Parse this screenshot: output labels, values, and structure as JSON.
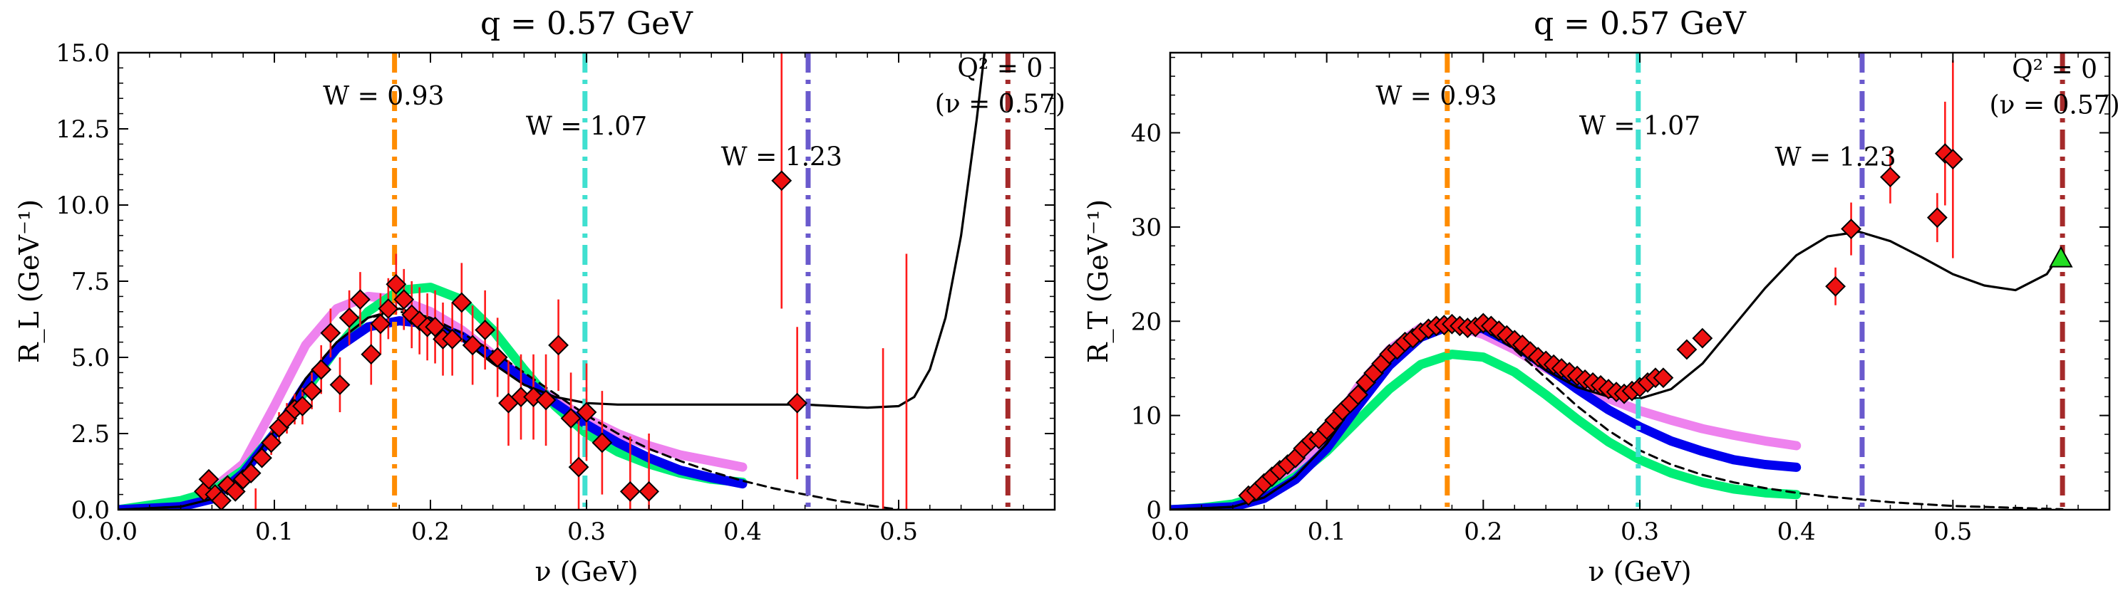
{
  "chart_data": [
    {
      "type": "line",
      "title": "q = 0.57 GeV",
      "xlabel": "ν (GeV)",
      "ylabel": "R_L (GeV⁻¹)",
      "xlim": [
        0.0,
        0.6
      ],
      "ylim": [
        0.0,
        15.0
      ],
      "x_ticks": [
        "0.0",
        "0.1",
        "0.2",
        "0.3",
        "0.4",
        "0.5"
      ],
      "y_ticks": [
        "0.0",
        "2.5",
        "5.0",
        "7.5",
        "10.0",
        "12.5",
        "15.0"
      ],
      "vlines": [
        {
          "x": 0.177,
          "color": "#ff8c00",
          "label": "W = 0.93",
          "label_x": 0.17,
          "label_y": 13.3
        },
        {
          "x": 0.299,
          "color": "#40e0d0",
          "label": "W = 1.07",
          "label_x": 0.3,
          "label_y": 12.3
        },
        {
          "x": 0.442,
          "color": "#6a5acd",
          "label": "W = 1.23",
          "label_x": 0.425,
          "label_y": 11.3
        },
        {
          "x": 0.57,
          "color": "#a52a2a",
          "label": "Q² = 0",
          "label2": "(ν = 0.57)",
          "label_x": 0.565,
          "label_y": 14.2
        }
      ],
      "series": [
        {
          "style": "thick",
          "color": "#ee82ee",
          "x": [
            0.0,
            0.05,
            0.08,
            0.1,
            0.12,
            0.14,
            0.16,
            0.18,
            0.2,
            0.22,
            0.24,
            0.26,
            0.28,
            0.3,
            0.32,
            0.34,
            0.36,
            0.38,
            0.4
          ],
          "y": [
            0.0,
            0.25,
            1.5,
            3.4,
            5.4,
            6.6,
            7.0,
            6.9,
            6.5,
            5.9,
            5.1,
            4.3,
            3.6,
            3.0,
            2.5,
            2.1,
            1.8,
            1.6,
            1.4
          ]
        },
        {
          "style": "thick",
          "color": "#00ee76",
          "x": [
            0.0,
            0.02,
            0.04,
            0.06,
            0.08,
            0.1,
            0.12,
            0.14,
            0.16,
            0.18,
            0.2,
            0.22,
            0.24,
            0.26,
            0.28,
            0.3,
            0.32,
            0.34,
            0.36,
            0.38,
            0.4
          ],
          "y": [
            0.0,
            0.15,
            0.3,
            0.6,
            1.3,
            2.5,
            3.9,
            5.3,
            6.5,
            7.2,
            7.3,
            6.9,
            5.9,
            4.6,
            3.4,
            2.5,
            1.9,
            1.5,
            1.2,
            1.0,
            0.9
          ]
        },
        {
          "style": "thick",
          "color": "#0000ee",
          "x": [
            0.0,
            0.04,
            0.06,
            0.08,
            0.1,
            0.12,
            0.14,
            0.16,
            0.18,
            0.2,
            0.22,
            0.24,
            0.26,
            0.28,
            0.3,
            0.32,
            0.34,
            0.36,
            0.38,
            0.4
          ],
          "y": [
            0.0,
            0.1,
            0.35,
            1.2,
            2.5,
            4.1,
            5.3,
            6.0,
            6.2,
            6.1,
            5.7,
            5.0,
            4.3,
            3.5,
            2.8,
            2.2,
            1.7,
            1.3,
            1.05,
            0.85
          ]
        },
        {
          "style": "dashed",
          "color": "#000000",
          "x": [
            0.0,
            0.04,
            0.06,
            0.08,
            0.1,
            0.12,
            0.14,
            0.16,
            0.18,
            0.2,
            0.22,
            0.24,
            0.26,
            0.28,
            0.3,
            0.32,
            0.34,
            0.36,
            0.38,
            0.4,
            0.42,
            0.44,
            0.46,
            0.48,
            0.5
          ],
          "y": [
            0.0,
            0.1,
            0.35,
            1.2,
            2.6,
            4.3,
            5.5,
            6.3,
            6.5,
            6.3,
            5.8,
            5.2,
            4.5,
            3.8,
            3.1,
            2.5,
            2.0,
            1.6,
            1.25,
            0.95,
            0.7,
            0.5,
            0.3,
            0.15,
            0.0
          ]
        },
        {
          "style": "solid",
          "color": "#000000",
          "x": [
            0.0,
            0.04,
            0.06,
            0.08,
            0.1,
            0.12,
            0.14,
            0.16,
            0.18,
            0.2,
            0.22,
            0.24,
            0.26,
            0.28,
            0.3,
            0.32,
            0.34,
            0.36,
            0.38,
            0.4,
            0.42,
            0.44,
            0.46,
            0.48,
            0.5,
            0.51,
            0.52,
            0.53,
            0.54,
            0.55,
            0.555
          ],
          "y": [
            0.0,
            0.1,
            0.35,
            1.2,
            2.6,
            4.3,
            5.5,
            6.3,
            6.6,
            6.3,
            5.6,
            4.8,
            4.1,
            3.7,
            3.5,
            3.45,
            3.45,
            3.45,
            3.45,
            3.45,
            3.45,
            3.45,
            3.4,
            3.35,
            3.4,
            3.7,
            4.6,
            6.3,
            9.0,
            12.8,
            15.0
          ]
        }
      ],
      "points": {
        "marker": "diamond",
        "color": "#ee1111",
        "x": [
          0.055,
          0.058,
          0.062,
          0.066,
          0.07,
          0.075,
          0.08,
          0.085,
          0.092,
          0.098,
          0.103,
          0.108,
          0.113,
          0.118,
          0.124,
          0.13,
          0.136,
          0.142,
          0.148,
          0.155,
          0.162,
          0.168,
          0.173,
          0.178,
          0.183,
          0.188,
          0.193,
          0.198,
          0.203,
          0.208,
          0.214,
          0.22,
          0.227,
          0.235,
          0.243,
          0.25,
          0.258,
          0.266,
          0.274,
          0.282,
          0.29,
          0.295,
          0.3,
          0.31,
          0.328,
          0.34,
          0.425,
          0.435
        ],
        "y": [
          0.6,
          1.0,
          0.5,
          0.3,
          0.8,
          0.6,
          1.0,
          1.2,
          1.7,
          2.2,
          2.7,
          3.0,
          3.3,
          3.4,
          3.9,
          4.6,
          5.8,
          4.1,
          6.3,
          6.9,
          5.1,
          6.1,
          6.6,
          7.4,
          6.9,
          6.4,
          6.2,
          6.0,
          6.0,
          5.6,
          5.6,
          6.8,
          5.4,
          5.9,
          5.0,
          3.5,
          3.7,
          3.7,
          3.6,
          5.4,
          3.0,
          1.4,
          3.2,
          2.2,
          0.6,
          0.6,
          10.8,
          3.5
        ],
        "err": [
          0.2,
          0.3,
          0.2,
          0.2,
          0.2,
          0.2,
          0.3,
          0.3,
          0.3,
          0.4,
          0.5,
          0.5,
          0.5,
          0.6,
          0.6,
          0.8,
          0.8,
          0.9,
          0.9,
          0.9,
          1.0,
          1.0,
          1.0,
          1.0,
          1.0,
          1.1,
          1.1,
          1.1,
          1.2,
          1.2,
          1.2,
          1.3,
          1.3,
          1.3,
          1.3,
          1.4,
          1.4,
          1.4,
          1.5,
          1.5,
          1.5,
          1.6,
          1.6,
          1.7,
          1.8,
          1.9,
          4.2,
          2.5
        ]
      },
      "extra_errorbars": [
        {
          "x": 0.49,
          "ylo": 0.0,
          "yhi": 5.3
        },
        {
          "x": 0.505,
          "ylo": 0.0,
          "yhi": 8.4
        },
        {
          "x": 0.088,
          "ylo": 0.0,
          "yhi": 0.7
        }
      ]
    },
    {
      "type": "line",
      "title": "q = 0.57 GeV",
      "xlabel": "ν (GeV)",
      "ylabel": "R_T (GeV⁻¹)",
      "xlim": [
        0.0,
        0.6
      ],
      "ylim": [
        0.0,
        48.5
      ],
      "x_ticks": [
        "0.0",
        "0.1",
        "0.2",
        "0.3",
        "0.4",
        "0.5"
      ],
      "y_ticks": [
        "0",
        "10",
        "20",
        "30",
        "40"
      ],
      "vlines": [
        {
          "x": 0.177,
          "color": "#ff8c00",
          "label": "W = 0.93",
          "label_x": 0.17,
          "label_y": 43.0
        },
        {
          "x": 0.299,
          "color": "#40e0d0",
          "label": "W = 1.07",
          "label_x": 0.3,
          "label_y": 39.8
        },
        {
          "x": 0.442,
          "color": "#6a5acd",
          "label": "W = 1.23",
          "label_x": 0.425,
          "label_y": 36.5
        },
        {
          "x": 0.57,
          "color": "#a52a2a",
          "label": "Q² = 0",
          "label2": "(ν = 0.57)",
          "label_x": 0.565,
          "label_y": 45.8
        }
      ],
      "series": [
        {
          "style": "thick",
          "color": "#ee82ee",
          "x": [
            0.0,
            0.04,
            0.06,
            0.08,
            0.1,
            0.12,
            0.14,
            0.16,
            0.18,
            0.2,
            0.22,
            0.24,
            0.26,
            0.28,
            0.3,
            0.32,
            0.34,
            0.36,
            0.38,
            0.4
          ],
          "y": [
            0.0,
            0.3,
            1.5,
            4.0,
            8.0,
            13.0,
            17.0,
            19.3,
            19.6,
            18.6,
            17.0,
            15.0,
            13.3,
            11.8,
            10.5,
            9.5,
            8.6,
            7.9,
            7.3,
            6.8
          ]
        },
        {
          "style": "thick",
          "color": "#00ee76",
          "x": [
            0.0,
            0.02,
            0.04,
            0.06,
            0.08,
            0.1,
            0.12,
            0.14,
            0.16,
            0.18,
            0.2,
            0.22,
            0.24,
            0.26,
            0.28,
            0.3,
            0.32,
            0.34,
            0.36,
            0.38,
            0.4
          ],
          "y": [
            0.0,
            0.2,
            0.6,
            1.6,
            3.5,
            6.2,
            9.5,
            12.8,
            15.4,
            16.5,
            16.2,
            14.6,
            12.2,
            9.6,
            7.2,
            5.3,
            3.9,
            2.9,
            2.2,
            1.8,
            1.6
          ]
        },
        {
          "style": "thick",
          "color": "#0000ee",
          "x": [
            0.0,
            0.04,
            0.06,
            0.08,
            0.1,
            0.12,
            0.14,
            0.16,
            0.18,
            0.2,
            0.22,
            0.24,
            0.26,
            0.28,
            0.3,
            0.32,
            0.34,
            0.36,
            0.38,
            0.4
          ],
          "y": [
            0.0,
            0.3,
            1.2,
            3.2,
            6.5,
            11.0,
            15.3,
            18.3,
            19.6,
            19.2,
            17.5,
            15.2,
            12.8,
            10.6,
            8.8,
            7.3,
            6.2,
            5.3,
            4.8,
            4.5
          ]
        },
        {
          "style": "dashed",
          "color": "#000000",
          "x": [
            0.0,
            0.04,
            0.06,
            0.08,
            0.1,
            0.12,
            0.14,
            0.16,
            0.18,
            0.2,
            0.22,
            0.24,
            0.26,
            0.28,
            0.3,
            0.32,
            0.34,
            0.36,
            0.38,
            0.4,
            0.42,
            0.44,
            0.46,
            0.48,
            0.5,
            0.52,
            0.54,
            0.56,
            0.57
          ],
          "y": [
            0.0,
            0.3,
            1.3,
            3.5,
            7.0,
            11.8,
            16.0,
            18.8,
            19.8,
            19.2,
            17.0,
            14.0,
            11.0,
            8.4,
            6.3,
            4.8,
            3.7,
            2.9,
            2.3,
            1.8,
            1.4,
            1.1,
            0.8,
            0.6,
            0.4,
            0.3,
            0.2,
            0.1,
            0.05
          ]
        },
        {
          "style": "solid",
          "color": "#000000",
          "x": [
            0.0,
            0.04,
            0.06,
            0.08,
            0.1,
            0.12,
            0.14,
            0.16,
            0.18,
            0.2,
            0.22,
            0.24,
            0.26,
            0.28,
            0.3,
            0.32,
            0.34,
            0.36,
            0.38,
            0.4,
            0.42,
            0.44,
            0.46,
            0.48,
            0.5,
            0.52,
            0.54,
            0.56,
            0.57
          ],
          "y": [
            0.0,
            0.3,
            1.3,
            3.5,
            7.0,
            11.8,
            16.0,
            18.8,
            19.9,
            19.3,
            17.2,
            14.8,
            13.0,
            12.0,
            11.8,
            12.8,
            15.5,
            19.5,
            23.5,
            27.0,
            29.0,
            29.5,
            28.5,
            26.8,
            25.0,
            23.8,
            23.3,
            25.0,
            27.5
          ]
        }
      ],
      "points": {
        "marker": "diamond",
        "color": "#ee1111",
        "x": [
          0.05,
          0.055,
          0.06,
          0.065,
          0.07,
          0.075,
          0.08,
          0.085,
          0.09,
          0.095,
          0.1,
          0.105,
          0.11,
          0.115,
          0.12,
          0.125,
          0.13,
          0.135,
          0.14,
          0.145,
          0.15,
          0.155,
          0.16,
          0.165,
          0.17,
          0.175,
          0.18,
          0.185,
          0.19,
          0.195,
          0.2,
          0.205,
          0.21,
          0.215,
          0.22,
          0.225,
          0.23,
          0.235,
          0.24,
          0.245,
          0.25,
          0.255,
          0.26,
          0.265,
          0.27,
          0.275,
          0.28,
          0.285,
          0.29,
          0.295,
          0.3,
          0.305,
          0.31,
          0.315,
          0.33,
          0.34,
          0.425,
          0.435,
          0.46,
          0.49,
          0.495,
          0.5
        ],
        "y": [
          1.5,
          2.0,
          2.8,
          3.5,
          4.2,
          4.8,
          5.5,
          6.5,
          7.3,
          7.5,
          8.5,
          9.5,
          10.5,
          11.3,
          12.2,
          13.5,
          14.5,
          15.5,
          16.5,
          17.0,
          17.8,
          18.2,
          18.8,
          19.2,
          19.5,
          19.6,
          19.7,
          19.5,
          19.3,
          19.4,
          19.8,
          19.5,
          19.0,
          18.5,
          18.0,
          17.5,
          16.8,
          16.2,
          15.8,
          15.4,
          15.0,
          14.6,
          14.2,
          13.8,
          13.5,
          13.2,
          12.8,
          12.5,
          12.3,
          12.6,
          13.0,
          13.5,
          14.0,
          14.0,
          17.0,
          18.2,
          23.7,
          29.8,
          35.3,
          31.0,
          37.8,
          37.2
        ],
        "err": [
          0.3,
          0.3,
          0.3,
          0.3,
          0.3,
          0.3,
          0.3,
          0.3,
          0.4,
          0.4,
          0.4,
          0.4,
          0.4,
          0.4,
          0.5,
          0.5,
          0.5,
          0.5,
          0.5,
          0.5,
          0.5,
          0.5,
          0.5,
          0.5,
          0.5,
          0.5,
          0.5,
          0.5,
          0.5,
          0.5,
          0.5,
          0.5,
          0.5,
          0.5,
          0.5,
          0.5,
          0.5,
          0.5,
          0.5,
          0.5,
          0.5,
          0.5,
          0.5,
          0.5,
          0.5,
          0.5,
          0.5,
          0.5,
          0.5,
          0.5,
          0.5,
          0.5,
          0.5,
          0.5,
          0.6,
          0.6,
          2.0,
          2.8,
          2.8,
          2.6,
          5.5,
          10.5
        ]
      },
      "triangle": {
        "x": 0.569,
        "y": 26.7,
        "color": "#22dd22"
      }
    }
  ]
}
